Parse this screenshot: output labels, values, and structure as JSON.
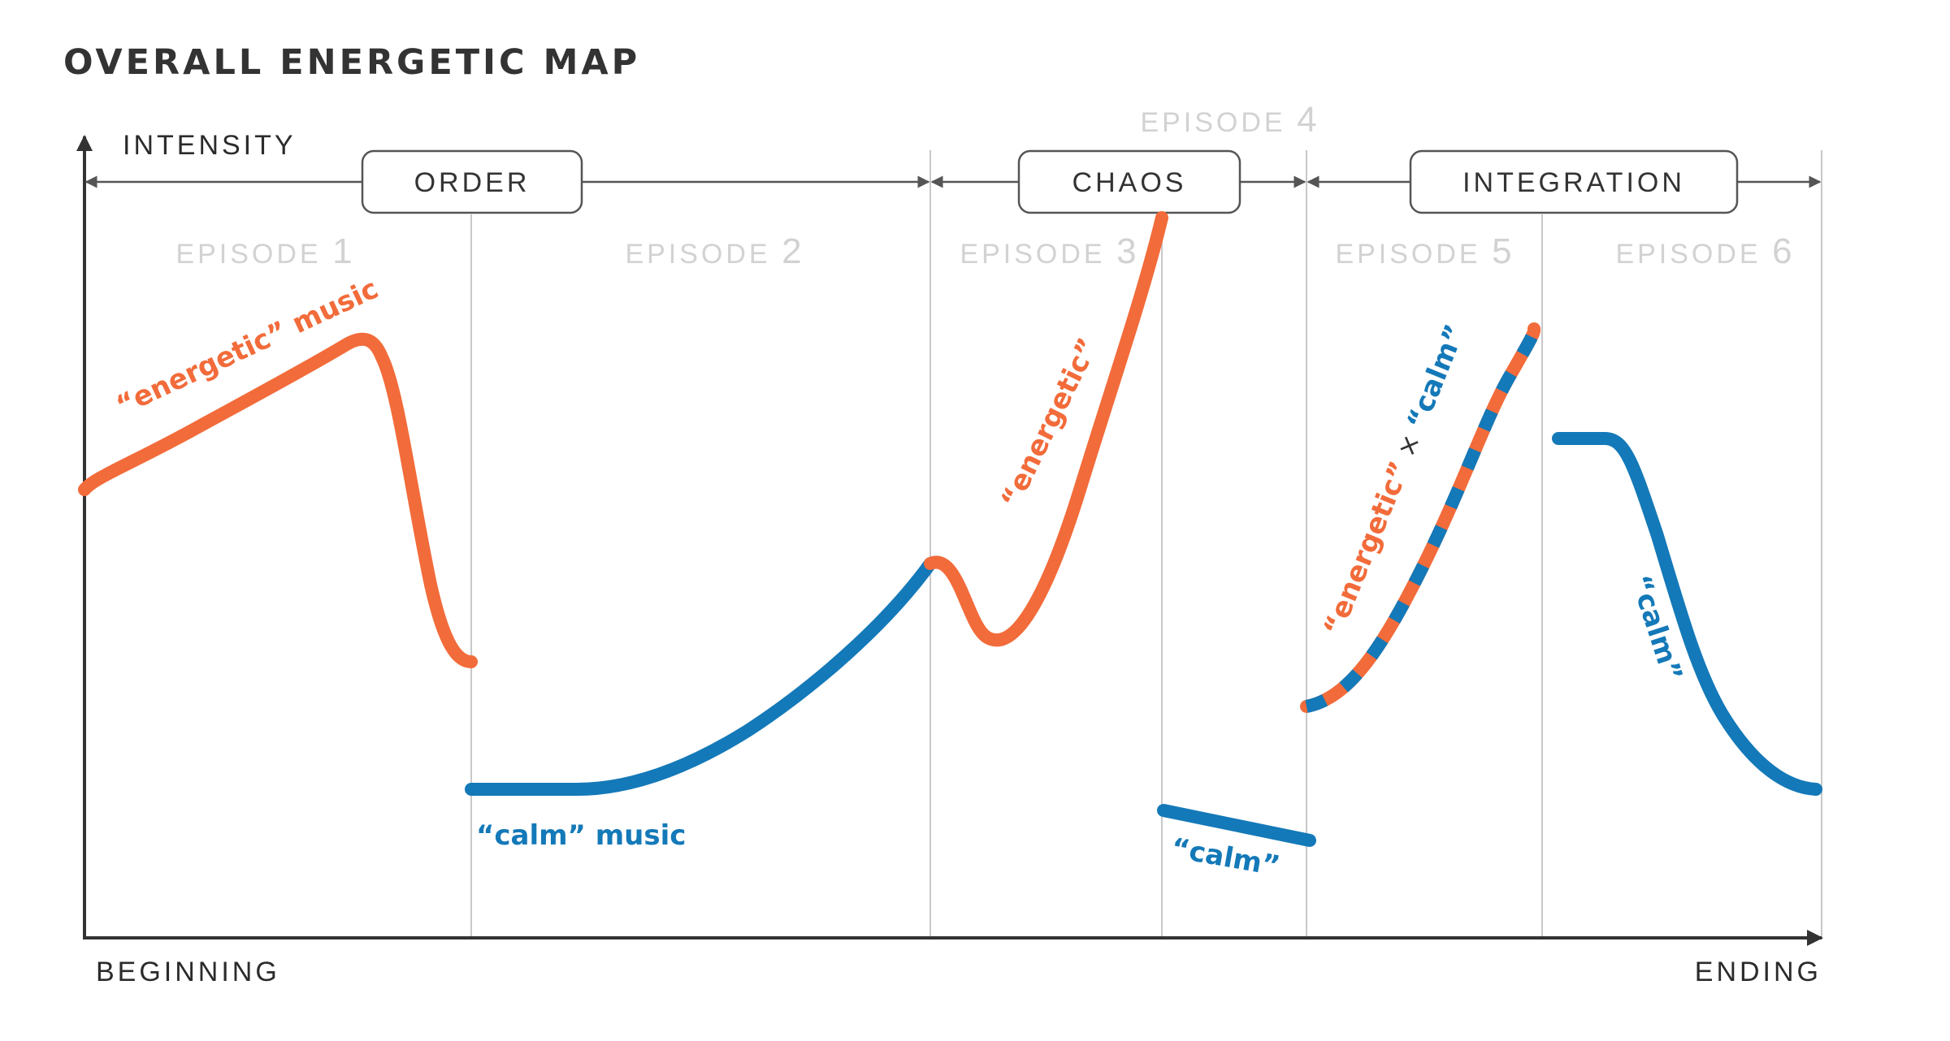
{
  "title": "OVERALL ENERGETIC MAP",
  "axes": {
    "y_label": "INTENSITY",
    "x_start_label": "BEGINNING",
    "x_end_label": "ENDING"
  },
  "phases": [
    {
      "label": "ORDER"
    },
    {
      "label": "CHAOS"
    },
    {
      "label": "INTEGRATION"
    }
  ],
  "episodes": [
    {
      "word": "EPISODE",
      "num": "1"
    },
    {
      "word": "EPISODE",
      "num": "2"
    },
    {
      "word": "EPISODE",
      "num": "3"
    },
    {
      "word": "EPISODE",
      "num": "4"
    },
    {
      "word": "EPISODE",
      "num": "5"
    },
    {
      "word": "EPISODE",
      "num": "6"
    }
  ],
  "curve_labels": {
    "ep1": "“energetic” music",
    "ep2": "“calm” music",
    "ep3": "“energetic”",
    "ep4": "“calm”",
    "ep5_energetic": "“energetic”",
    "ep5_times": "×",
    "ep5_calm": "“calm”",
    "ep6": "“calm”"
  },
  "colors": {
    "energetic": "#f26b3a",
    "calm": "#1479b8",
    "axis": "#333333",
    "divider": "#c8c8c8",
    "episode_label": "#d2d2d2"
  }
}
